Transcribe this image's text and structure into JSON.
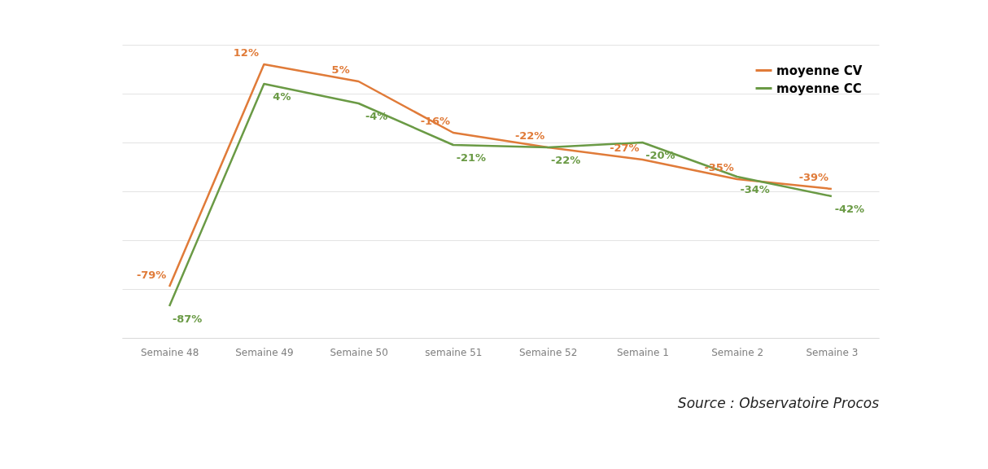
{
  "chart_data": {
    "type": "line",
    "categories": [
      "Semaine 48",
      "Semaine 49",
      "Semaine 50",
      "semaine 51",
      "Semaine 52",
      "Semaine 1",
      "Semaine 2",
      "Semaine 3"
    ],
    "series": [
      {
        "name": "moyenne CV",
        "color": "#e07b39",
        "values": [
          -79,
          12,
          5,
          -16,
          -22,
          -27,
          -35,
          -39
        ],
        "value_labels": [
          "-79%",
          "12%",
          "5%",
          "-16%",
          "-22%",
          "-27%",
          "-35%",
          "-39%"
        ]
      },
      {
        "name": "moyenne CC",
        "color": "#6a9a45",
        "values": [
          -87,
          4,
          -4,
          -21,
          -22,
          -20,
          -34,
          -42
        ],
        "value_labels": [
          "-87%",
          "4%",
          "-4%",
          "-21%",
          "-22%",
          "-20%",
          "-34%",
          "-42%"
        ]
      }
    ],
    "ylim": [
      -100,
      20
    ],
    "yticks": [
      {
        "value": -100,
        "label": null
      },
      {
        "value": -80,
        "label": null
      },
      {
        "value": -60,
        "label": null
      },
      {
        "value": -40,
        "label": null
      },
      {
        "value": -20,
        "label": null
      },
      {
        "value": 0,
        "label": null
      },
      {
        "value": 20,
        "label": null
      }
    ],
    "tick_labels": "x",
    "grid": "y",
    "legend": "top right",
    "marker": "none",
    "line_style": "solid",
    "annotations": [
      "Source : Observatoire Procos"
    ]
  }
}
